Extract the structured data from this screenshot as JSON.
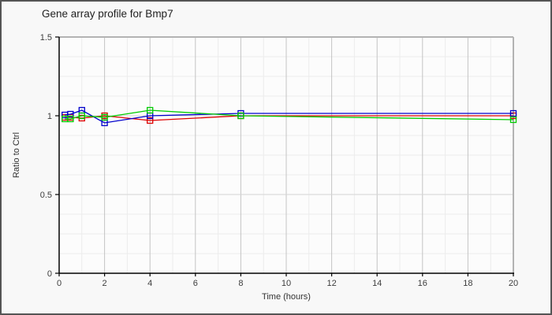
{
  "title": "Gene array profile for Bmp7",
  "axes": {
    "x": {
      "title": "Time (hours)",
      "tick_labels": [
        "0",
        "2",
        "4",
        "6",
        "8",
        "10",
        "12",
        "14",
        "16",
        "18",
        "20"
      ],
      "ticks": [
        0,
        2,
        4,
        6,
        8,
        10,
        12,
        14,
        16,
        18,
        20
      ],
      "min": 0,
      "max": 20,
      "minor_step": 1
    },
    "y": {
      "title": "Ratio to Ctrl",
      "tick_labels": [
        "0",
        "0.5",
        "1",
        "1.5"
      ],
      "ticks": [
        0,
        0.5,
        1,
        1.5
      ],
      "min": 0,
      "max": 1.5,
      "minor_step": 0.125
    }
  },
  "style": {
    "background": "#f8f8f8",
    "plot_background": "#fcfcfc",
    "minor_grid": "#ececec",
    "major_grid_v": "#c4c4c4",
    "major_grid_h": "#d5d5d5",
    "plot_border": "#b3b3b3",
    "axis_color": "#000000",
    "frame_border": "#555555"
  },
  "chart_data": {
    "type": "line",
    "title": "Gene array profile for Bmp7",
    "xlabel": "Time (hours)",
    "ylabel": "Ratio to Ctrl",
    "x": [
      0.25,
      0.5,
      1,
      2,
      4,
      8,
      20
    ],
    "xlim": [
      0,
      20
    ],
    "ylim": [
      0,
      1.5
    ],
    "grid": true,
    "legend": "none",
    "marker": "open-square",
    "series": [
      {
        "name": "series-red",
        "color": "#dd0000",
        "values": [
          0.99,
          0.99,
          0.985,
          1.0,
          0.97,
          1.0,
          1.0
        ]
      },
      {
        "name": "series-blue",
        "color": "#0000cc",
        "values": [
          1.005,
          1.01,
          1.035,
          0.955,
          1.0,
          1.015,
          1.015
        ]
      },
      {
        "name": "series-green",
        "color": "#00cc00",
        "values": [
          0.98,
          0.98,
          1.0,
          0.99,
          1.035,
          1.0,
          0.975
        ]
      }
    ]
  }
}
